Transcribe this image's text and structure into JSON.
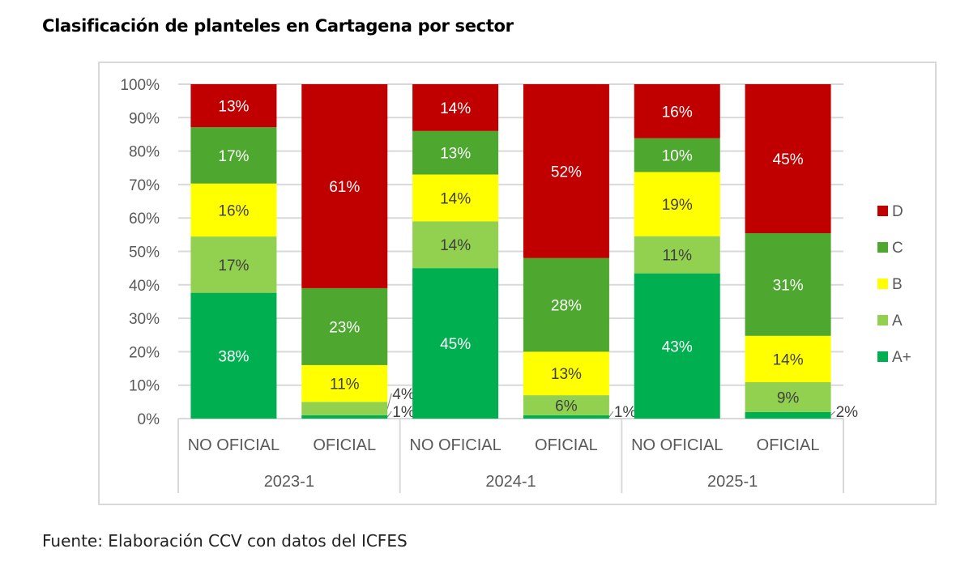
{
  "title": "Clasificación de planteles en Cartagena por sector",
  "source": "Fuente: Elaboración CCV con datos del ICFES",
  "chart_data": {
    "type": "bar",
    "stacked": true,
    "percent_stacked": true,
    "title": "Clasificación de planteles en Cartagena por sector",
    "xlabel": "",
    "ylabel": "",
    "ylim": [
      0,
      100
    ],
    "yticks": [
      "0%",
      "10%",
      "20%",
      "30%",
      "40%",
      "50%",
      "60%",
      "70%",
      "80%",
      "90%",
      "100%"
    ],
    "grid": true,
    "legend_position": "right",
    "groups": [
      "2023-1",
      "2024-1",
      "2025-1"
    ],
    "categories": [
      "NO OFICIAL",
      "OFICIAL",
      "NO OFICIAL",
      "OFICIAL",
      "NO OFICIAL",
      "OFICIAL"
    ],
    "category_groups": [
      "2023-1",
      "2023-1",
      "2024-1",
      "2024-1",
      "2025-1",
      "2025-1"
    ],
    "series": [
      {
        "name": "A+",
        "color": "#00b050",
        "label_color": "#ffffff",
        "values": [
          38,
          1,
          45,
          1,
          43,
          2
        ]
      },
      {
        "name": "A",
        "color": "#92d050",
        "label_color": "#404040",
        "values": [
          17,
          4,
          14,
          6,
          11,
          9
        ]
      },
      {
        "name": "B",
        "color": "#ffff00",
        "label_color": "#404040",
        "values": [
          16,
          11,
          14,
          13,
          19,
          14
        ]
      },
      {
        "name": "C",
        "color": "#4ea72e",
        "label_color": "#ffffff",
        "values": [
          17,
          23,
          13,
          28,
          10,
          31
        ]
      },
      {
        "name": "D",
        "color": "#c00000",
        "label_color": "#ffffff",
        "values": [
          13,
          61,
          14,
          52,
          16,
          45
        ]
      }
    ],
    "legend_order": [
      "D",
      "C",
      "B",
      "A",
      "A+"
    ]
  }
}
